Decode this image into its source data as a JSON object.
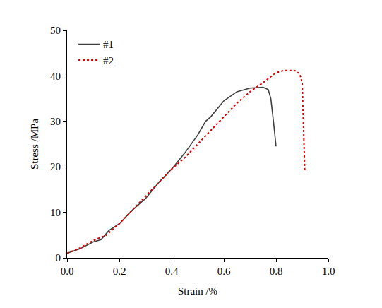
{
  "chart_data": {
    "type": "line",
    "x_label": "Strain /%",
    "y_label": "Stress /MPa",
    "xlim": [
      0,
      1.0
    ],
    "xticks": [
      {
        "value": 0,
        "label": "0.0"
      },
      0.2,
      0.4,
      0.6,
      0.8,
      {
        "value": 1.0,
        "label": "1.0"
      }
    ],
    "ylim": [
      0,
      50
    ],
    "yticks": [
      0,
      10,
      20,
      30,
      40,
      50
    ],
    "grid": false,
    "legend": "top-left",
    "series": [
      {
        "name": "#1",
        "color": "#404040",
        "line_style": "solid",
        "x": [
          0,
          0.05,
          0.1,
          0.13,
          0.16,
          0.2,
          0.25,
          0.3,
          0.35,
          0.4,
          0.45,
          0.5,
          0.53,
          0.55,
          0.6,
          0.65,
          0.7,
          0.75,
          0.77,
          0.78,
          0.79,
          0.8
        ],
        "values": [
          1,
          2,
          3.5,
          4,
          6,
          7.5,
          10.5,
          13,
          16.5,
          19.5,
          23,
          27,
          30,
          31,
          34.5,
          36.5,
          37.3,
          37.5,
          37,
          35,
          30,
          24.5
        ]
      },
      {
        "name": "#2",
        "color": "#e00000",
        "line_style": "dot",
        "x": [
          0,
          0.05,
          0.1,
          0.15,
          0.2,
          0.25,
          0.3,
          0.35,
          0.4,
          0.45,
          0.5,
          0.55,
          0.6,
          0.65,
          0.7,
          0.75,
          0.8,
          0.83,
          0.87,
          0.89,
          0.9,
          0.905,
          0.91
        ],
        "values": [
          1,
          2.2,
          3.8,
          5,
          7.5,
          10.5,
          13.5,
          16.5,
          19.5,
          22,
          25,
          28,
          31,
          34,
          36.5,
          38.5,
          40.7,
          41.2,
          41.2,
          40.5,
          38.5,
          28,
          19
        ]
      }
    ]
  }
}
